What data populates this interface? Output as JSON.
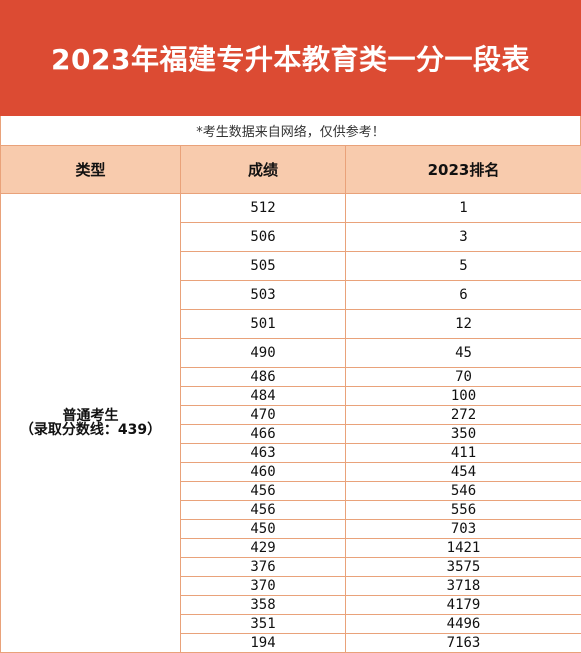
{
  "title": "2023年福建专升本教育类一分一段表",
  "note": "*考生数据来自网络，仅供参考！",
  "headers": {
    "type": "类型",
    "score": "成绩",
    "rank": "2023排名"
  },
  "category": {
    "line1": "普通考生",
    "line2": "（录取分数线：439）"
  },
  "rows": [
    {
      "score": "512",
      "rank": "1"
    },
    {
      "score": "506",
      "rank": "3"
    },
    {
      "score": "505",
      "rank": "5"
    },
    {
      "score": "503",
      "rank": "6"
    },
    {
      "score": "501",
      "rank": "12"
    },
    {
      "score": "490",
      "rank": "45"
    },
    {
      "score": "486",
      "rank": "70"
    },
    {
      "score": "484",
      "rank": "100"
    },
    {
      "score": "470",
      "rank": "272"
    },
    {
      "score": "466",
      "rank": "350"
    },
    {
      "score": "463",
      "rank": "411"
    },
    {
      "score": "460",
      "rank": "454"
    },
    {
      "score": "456",
      "rank": "546"
    },
    {
      "score": "456",
      "rank": "556"
    },
    {
      "score": "450",
      "rank": "703"
    },
    {
      "score": "429",
      "rank": "1421"
    },
    {
      "score": "376",
      "rank": "3575"
    },
    {
      "score": "370",
      "rank": "3718"
    },
    {
      "score": "358",
      "rank": "4179"
    },
    {
      "score": "351",
      "rank": "4496"
    },
    {
      "score": "194",
      "rank": "7163"
    }
  ]
}
